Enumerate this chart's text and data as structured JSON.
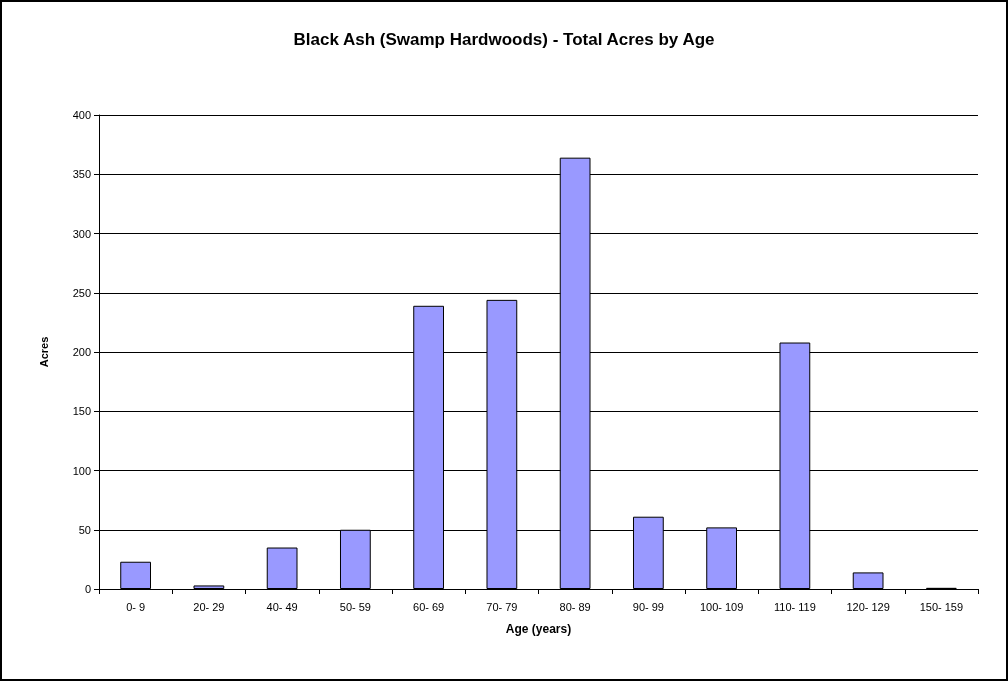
{
  "chart_data": {
    "type": "bar",
    "title": "Black Ash (Swamp Hardwoods) - Total Acres by Age",
    "xlabel": "Age (years)",
    "ylabel": "Acres",
    "categories": [
      "0- 9",
      "20- 29",
      "40- 49",
      "50- 59",
      "60- 69",
      "70- 79",
      "80- 89",
      "90- 99",
      "100- 109",
      "110- 119",
      "120- 129",
      "150- 159"
    ],
    "values": [
      23,
      3,
      35,
      50,
      239,
      244,
      364,
      61,
      52,
      208,
      14,
      1
    ],
    "color": "#9999ff",
    "ylim": [
      0,
      400
    ],
    "yticks": [
      0,
      50,
      100,
      150,
      200,
      250,
      300,
      350,
      400
    ],
    "grid": "y"
  }
}
